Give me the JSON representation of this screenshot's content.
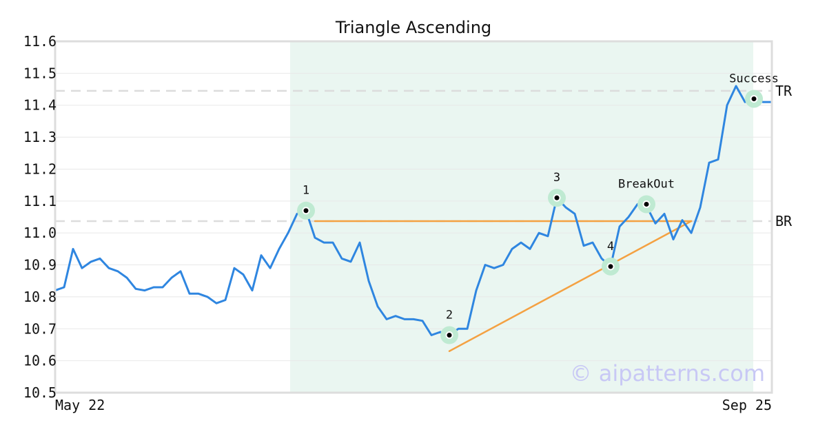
{
  "chart_data": {
    "type": "line",
    "title": "Triangle Ascending",
    "xlabel": "",
    "ylabel": "",
    "ylim": [
      10.5,
      11.6
    ],
    "yticks": [
      "10.5",
      "10.6",
      "10.7",
      "10.8",
      "10.9",
      "11.0",
      "11.1",
      "11.2",
      "11.3",
      "11.4",
      "11.5",
      "11.6"
    ],
    "xtick_labels": [
      "May 22",
      "Sep 25"
    ],
    "grid": "horizontal",
    "series": [
      {
        "color": "#2f86e0",
        "values": [
          10.82,
          10.83,
          10.95,
          10.89,
          10.91,
          10.92,
          10.89,
          10.88,
          10.86,
          10.825,
          10.82,
          10.83,
          10.83,
          10.86,
          10.88,
          10.81,
          10.81,
          10.8,
          10.78,
          10.79,
          10.89,
          10.87,
          10.82,
          10.93,
          10.89,
          10.95,
          11.0,
          11.06,
          11.07,
          10.985,
          10.97,
          10.97,
          10.92,
          10.91,
          10.97,
          10.85,
          10.77,
          10.73,
          10.74,
          10.73,
          10.73,
          10.725,
          10.68,
          10.69,
          10.68,
          10.7,
          10.7,
          10.82,
          10.9,
          10.89,
          10.9,
          10.95,
          10.97,
          10.95,
          11.0,
          10.99,
          11.11,
          11.08,
          11.06,
          10.96,
          10.97,
          10.92,
          10.895,
          11.02,
          11.05,
          11.09,
          11.085,
          11.03,
          11.06,
          10.98,
          11.04,
          11.0,
          11.08,
          11.22,
          11.23,
          11.4,
          11.46,
          11.41,
          11.42,
          11.41,
          11.41
        ]
      }
    ],
    "shaded_region": {
      "start_index": 28,
      "end_index": 77,
      "color": "#eaf6f1"
    },
    "reference_lines": [
      {
        "label": "TR",
        "value": 11.445
      },
      {
        "label": "BR",
        "value": 11.037
      }
    ],
    "pattern_lines": [
      {
        "color": "#f4a142",
        "from": {
          "index": 29,
          "value": 11.037
        },
        "to": {
          "index": 71,
          "value": 11.037
        }
      },
      {
        "color": "#f4a142",
        "from": {
          "index": 44,
          "value": 10.63
        },
        "to": {
          "index": 71,
          "value": 11.037
        }
      }
    ],
    "annotations": [
      {
        "label": "1",
        "index": 28,
        "value": 11.07
      },
      {
        "label": "2",
        "index": 44,
        "value": 10.68
      },
      {
        "label": "3",
        "index": 56,
        "value": 11.11
      },
      {
        "label": "4",
        "index": 62,
        "value": 10.895
      },
      {
        "label": "BreakOut",
        "index": 66,
        "value": 11.09
      },
      {
        "label": "Success",
        "index": 78,
        "value": 11.42
      }
    ],
    "watermark": "© aipatterns.com"
  }
}
